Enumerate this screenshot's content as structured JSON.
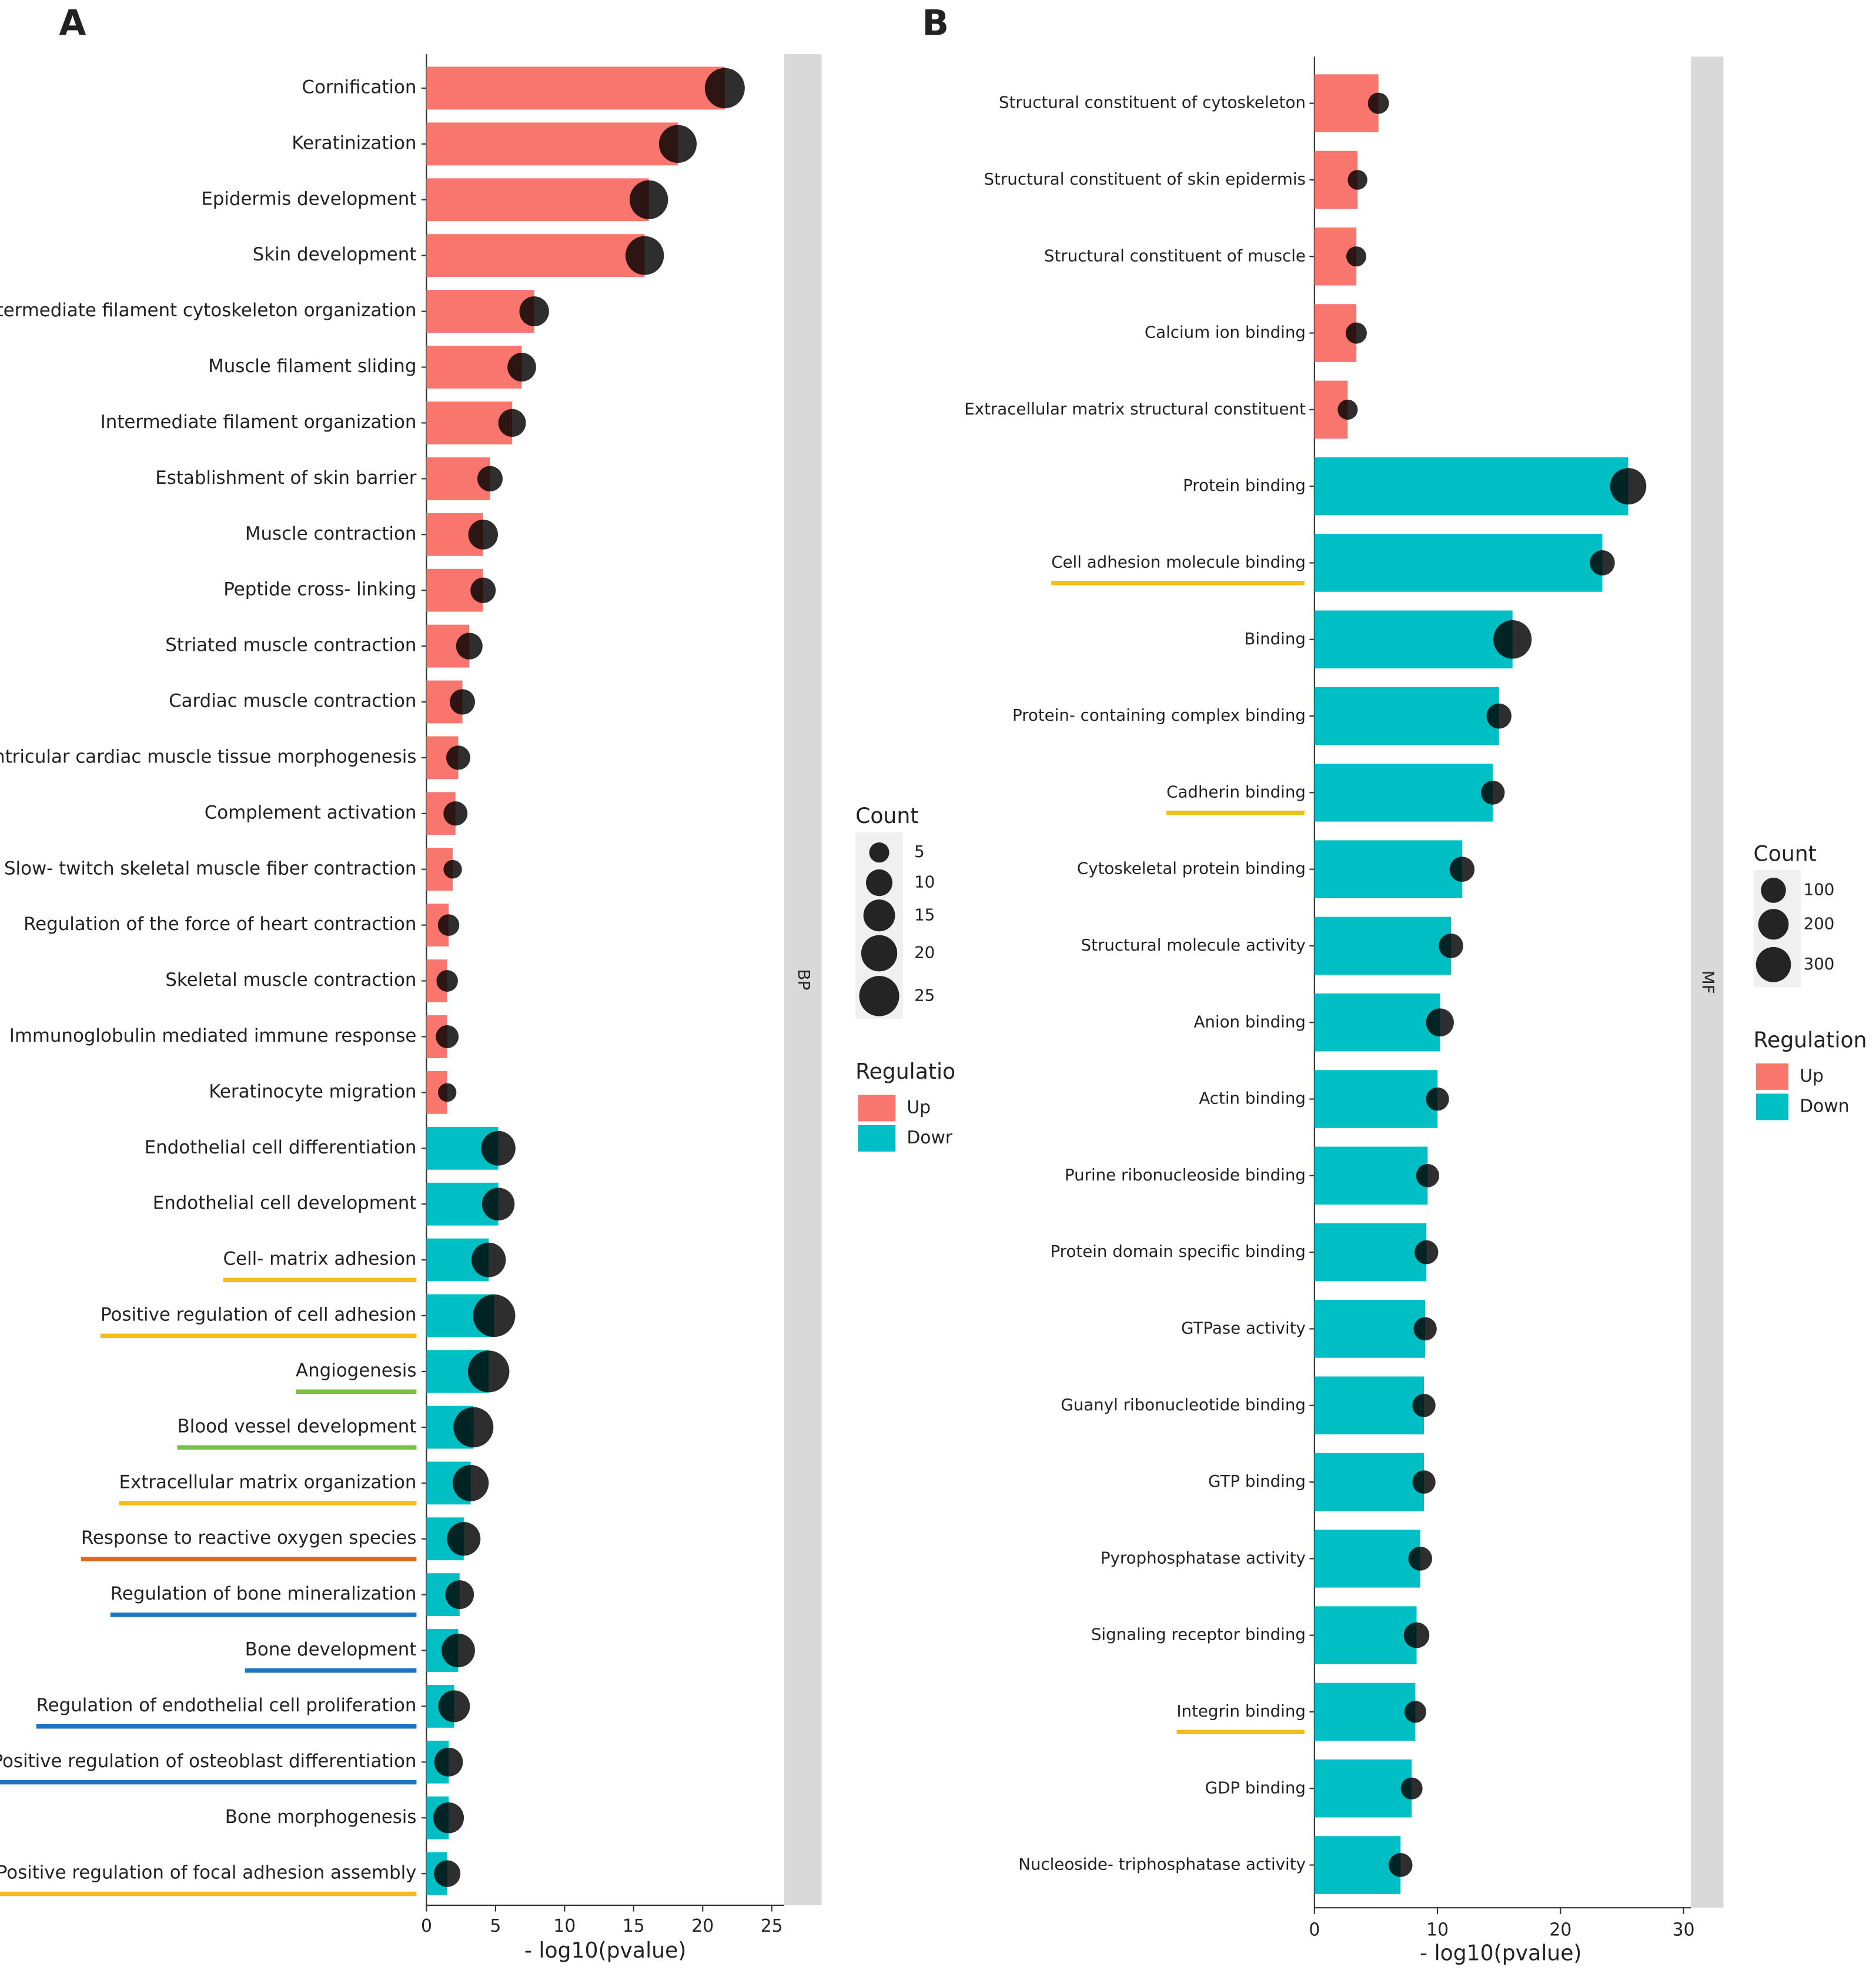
{
  "chart_data": [
    {
      "type": "bar",
      "panel_label": "A",
      "facet": "BP",
      "xlabel": "- log10(pvalue)",
      "xlim": [
        0,
        25.9
      ],
      "xticks": [
        0,
        5,
        10,
        15,
        20,
        25
      ],
      "size_legend": {
        "title": "Count",
        "values": [
          5,
          10,
          15,
          20,
          25
        ]
      },
      "color_legend_title": "Regulatio",
      "series": [
        {
          "name": "Up",
          "color": "#F8766D",
          "categories": [
            "Cornification",
            "Keratinization",
            "Epidermis development",
            "Skin development",
            "Intermediate filament cytoskeleton organization",
            "Muscle filament sliding",
            "Intermediate filament organization",
            "Establishment of skin barrier",
            "Muscle contraction",
            "Peptide cross- linking",
            "Striated muscle contraction",
            "Cardiac muscle contraction",
            "Ventricular cardiac muscle tissue morphogenesis",
            "Complement activation",
            "Slow- twitch skeletal muscle fiber contraction",
            "Regulation of the force of heart contraction",
            "Skeletal muscle contraction",
            "Immunoglobulin mediated immune response",
            "Keratinocyte migration"
          ],
          "values": [
            21.6,
            18.2,
            16.1,
            15.8,
            7.8,
            6.9,
            6.2,
            4.6,
            4.1,
            4.1,
            3.1,
            2.6,
            2.3,
            2.1,
            1.9,
            1.6,
            1.5,
            1.5,
            1.5
          ],
          "counts": [
            25,
            22,
            23,
            23,
            13,
            12,
            11,
            9,
            13,
            9,
            10,
            9,
            8,
            8,
            4,
            6,
            6,
            7,
            4
          ],
          "underline": [
            null,
            null,
            null,
            null,
            null,
            null,
            null,
            null,
            null,
            null,
            null,
            null,
            null,
            null,
            null,
            null,
            null,
            null,
            null
          ]
        },
        {
          "name": "Dowr",
          "color": "#00BFC4",
          "categories": [
            "Endothelial cell differentiation",
            "Endothelial cell development",
            "Cell- matrix adhesion",
            "Positive regulation of cell adhesion",
            "Angiogenesis",
            "Blood vessel development",
            "Extracellular matrix organization",
            "Response to reactive oxygen species",
            "Regulation of bone mineralization",
            "Bone development",
            "Regulation of endothelial cell proliferation",
            "Positive regulation of osteoblast differentiation",
            "Bone morphogenesis",
            "Positive regulation of focal adhesion assembly"
          ],
          "values": [
            5.2,
            5.2,
            4.5,
            4.9,
            4.5,
            3.4,
            3.2,
            2.7,
            2.4,
            2.3,
            2.0,
            1.6,
            1.6,
            1.5
          ],
          "counts": [
            18,
            16,
            18,
            28,
            27,
            25,
            20,
            17,
            12,
            17,
            15,
            12,
            14,
            10
          ],
          "underline": [
            null,
            null,
            "#F5BC1B",
            "#F5BC1B",
            "#7AC143",
            "#7AC143",
            "#F5BC1B",
            "#E0661E",
            "#1F73C1",
            "#1F73C1",
            "#1F73C1",
            "#1F73C1",
            null,
            "#F5BC1B"
          ]
        }
      ]
    },
    {
      "type": "bar",
      "panel_label": "B",
      "facet": "MF",
      "xlabel": "- log10(pvalue)",
      "xlim": [
        0,
        30.6
      ],
      "xticks": [
        0,
        10,
        20,
        30
      ],
      "size_legend": {
        "title": "Count",
        "values": [
          100,
          200,
          300
        ]
      },
      "color_legend_title": "Regulation",
      "series": [
        {
          "name": "Up",
          "color": "#F8766D",
          "categories": [
            "Structural constituent of cytoskeleton",
            "Structural constituent of skin epidermis",
            "Structural constituent of muscle",
            "Calcium ion binding",
            "Extracellular matrix structural constituent"
          ],
          "values": [
            5.2,
            3.5,
            3.4,
            3.4,
            2.7
          ],
          "counts": [
            40,
            20,
            25,
            40,
            25
          ],
          "underline": [
            null,
            null,
            null,
            null,
            null
          ]
        },
        {
          "name": "Down",
          "color": "#00BFC4",
          "categories": [
            "Protein binding",
            "Cell adhesion molecule binding",
            "Binding",
            "Protein- containing complex binding",
            "Cadherin binding",
            "Cytoskeletal protein binding",
            "Structural molecule activity",
            "Anion binding",
            "Actin binding",
            "Purine ribonucleoside binding",
            "Protein domain specific binding",
            "GTPase activity",
            "Guanyl ribonucleotide binding",
            "GTP binding",
            "Pyrophosphatase activity",
            "Signaling receptor binding",
            "Integrin binding",
            "GDP binding",
            "Nucleoside- triphosphatase activity"
          ],
          "values": [
            25.5,
            23.4,
            16.1,
            15.0,
            14.5,
            12.0,
            11.1,
            10.2,
            10.0,
            9.2,
            9.1,
            9.0,
            8.9,
            8.9,
            8.6,
            8.3,
            8.2,
            7.9,
            7.0
          ],
          "counts": [
            330,
            100,
            380,
            100,
            80,
            100,
            90,
            150,
            70,
            70,
            80,
            70,
            70,
            70,
            80,
            110,
            50,
            50,
            80
          ],
          "underline": [
            null,
            "#F5BC1B",
            null,
            null,
            "#F5BC1B",
            null,
            null,
            null,
            null,
            null,
            null,
            null,
            null,
            null,
            null,
            null,
            "#F5BC1B",
            null,
            null
          ]
        }
      ]
    }
  ]
}
